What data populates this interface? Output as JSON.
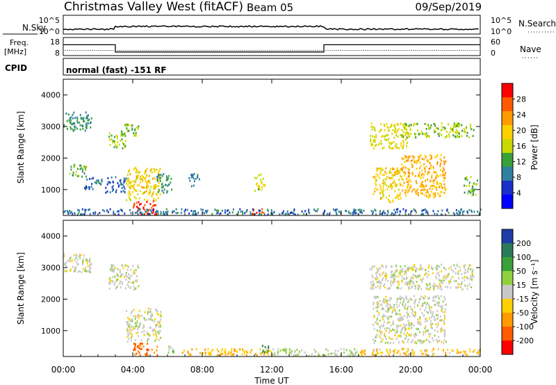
{
  "header": {
    "title": "Christmas Valley West (fitACF)",
    "beam": "Beam 05",
    "date": "09/Sep/2019"
  },
  "nsky_panel": {
    "left_label": "N.Sky",
    "right_label": "N.Search",
    "left_ticks": [
      "10^5",
      "10^0"
    ],
    "right_ticks": [
      "10^5",
      "10^0"
    ]
  },
  "freq_panel": {
    "left_label_top": "Freq.",
    "left_label_bottom": "[MHz]",
    "left_ticks": [
      "18",
      "8"
    ],
    "right_ticks": [
      "60",
      "0"
    ],
    "right_label": "Nave",
    "freq_steps_mhz": [
      {
        "from_hour": 0,
        "to_hour": 3.0,
        "value": 14
      },
      {
        "from_hour": 3.0,
        "to_hour": 15.0,
        "value": 10
      },
      {
        "from_hour": 15.0,
        "to_hour": 24,
        "value": 14
      }
    ]
  },
  "cpid": {
    "label": "CPID",
    "text": "normal (fast) -151 RF"
  },
  "x_axis": {
    "label": "Time UT",
    "ticks": [
      "00:00",
      "04:00",
      "08:00",
      "12:00",
      "16:00",
      "20:00",
      "00:00"
    ]
  },
  "power_panel": {
    "ylabel": "Slant Range [km]",
    "yticks": [
      "4000",
      "3000",
      "2000",
      "1000"
    ],
    "colorbar_label": "Power [dB]",
    "colorbar_ticks": [
      "28",
      "24",
      "20",
      "16",
      "12",
      "8",
      "4"
    ],
    "colorbar_colors": [
      "#ff0000",
      "#ff5a00",
      "#ff9a00",
      "#ffd000",
      "#c8d800",
      "#3aa03a",
      "#2f7fa0",
      "#1a30c8",
      "#0000ff"
    ]
  },
  "velocity_panel": {
    "ylabel": "Slant Range [km]",
    "yticks": [
      "4000",
      "3000",
      "2000",
      "1000"
    ],
    "colorbar_label": "Velocity [m s⁻¹]",
    "colorbar_ticks": [
      "200",
      "100",
      "50",
      "15",
      "-15",
      "-50",
      "-100",
      "-200"
    ],
    "colorbar_colors": [
      "#1e3ca8",
      "#2a7a5a",
      "#3aa03a",
      "#8fd040",
      "#c8c8c8",
      "#ffd000",
      "#ff9a00",
      "#ff5a00",
      "#ff0000"
    ]
  },
  "chart_data": [
    {
      "type": "heatmap",
      "ylabel": "Slant Range [km]",
      "xlabel": "Time UT",
      "xlim_hours": [
        0,
        24
      ],
      "ylim_km": [
        180,
        4500
      ],
      "colorbar": "Power [dB]",
      "colorbar_range": [
        0,
        30
      ],
      "regions": [
        {
          "t0": 0.0,
          "t1": 1.6,
          "r0": 2850,
          "r1": 3450,
          "value": 10
        },
        {
          "t0": 0.3,
          "t1": 1.3,
          "r0": 1400,
          "r1": 1800,
          "value": 12
        },
        {
          "t0": 1.2,
          "t1": 2.2,
          "r0": 1000,
          "r1": 1400,
          "value": 8
        },
        {
          "t0": 2.6,
          "t1": 3.6,
          "r0": 2300,
          "r1": 2800,
          "value": 14
        },
        {
          "t0": 3.3,
          "t1": 4.3,
          "r0": 2700,
          "r1": 3100,
          "value": 13
        },
        {
          "t0": 2.4,
          "t1": 3.6,
          "r0": 900,
          "r1": 1400,
          "value": 6
        },
        {
          "t0": 3.6,
          "t1": 5.6,
          "r0": 650,
          "r1": 1700,
          "value": 18
        },
        {
          "t0": 4.0,
          "t1": 5.4,
          "r0": 200,
          "r1": 650,
          "value": 28
        },
        {
          "t0": 5.3,
          "t1": 6.2,
          "r0": 900,
          "r1": 1500,
          "value": 10
        },
        {
          "t0": 7.2,
          "t1": 7.8,
          "r0": 1100,
          "r1": 1500,
          "value": 8
        },
        {
          "t0": 11.0,
          "t1": 11.6,
          "r0": 950,
          "r1": 1500,
          "value": 16
        },
        {
          "t0": 10.8,
          "t1": 11.6,
          "r0": 200,
          "r1": 400,
          "value": 26
        },
        {
          "t0": 17.6,
          "t1": 19.8,
          "r0": 2300,
          "r1": 3100,
          "value": 16
        },
        {
          "t0": 19.5,
          "t1": 23.6,
          "r0": 2650,
          "r1": 3100,
          "value": 14
        },
        {
          "t0": 17.8,
          "t1": 19.4,
          "r0": 600,
          "r1": 1700,
          "value": 18
        },
        {
          "t0": 19.4,
          "t1": 22.0,
          "r0": 750,
          "r1": 2100,
          "value": 20
        },
        {
          "t0": 23.0,
          "t1": 23.8,
          "r0": 800,
          "r1": 1400,
          "value": 12
        },
        {
          "t0": 0.0,
          "t1": 24.0,
          "r0": 200,
          "r1": 380,
          "value": 8
        }
      ]
    },
    {
      "type": "heatmap",
      "ylabel": "Slant Range [km]",
      "xlabel": "Time UT",
      "xlim_hours": [
        0,
        24
      ],
      "ylim_km": [
        180,
        4500
      ],
      "colorbar": "Velocity [m s⁻¹]",
      "colorbar_range": [
        -200,
        200
      ],
      "regions": [
        {
          "t0": 0.0,
          "t1": 1.6,
          "r0": 2850,
          "r1": 3450,
          "value": 0
        },
        {
          "t0": 2.6,
          "t1": 4.3,
          "r0": 2300,
          "r1": 3100,
          "value": 0
        },
        {
          "t0": 3.6,
          "t1": 5.6,
          "r0": 650,
          "r1": 1700,
          "value": 0
        },
        {
          "t0": 4.0,
          "t1": 5.4,
          "r0": 200,
          "r1": 600,
          "value": -120
        },
        {
          "t0": 6.0,
          "t1": 6.4,
          "r0": 200,
          "r1": 500,
          "value": 40
        },
        {
          "t0": 6.8,
          "t1": 12.0,
          "r0": 200,
          "r1": 420,
          "value": -60
        },
        {
          "t0": 11.4,
          "t1": 11.8,
          "r0": 250,
          "r1": 550,
          "value": 120
        },
        {
          "t0": 12.0,
          "t1": 17.0,
          "r0": 200,
          "r1": 420,
          "value": 30
        },
        {
          "t0": 17.6,
          "t1": 23.6,
          "r0": 2300,
          "r1": 3100,
          "value": 0
        },
        {
          "t0": 17.8,
          "t1": 22.0,
          "r0": 600,
          "r1": 2100,
          "value": 0
        },
        {
          "t0": 17.0,
          "t1": 24.0,
          "r0": 200,
          "r1": 420,
          "value": -50
        }
      ]
    }
  ]
}
